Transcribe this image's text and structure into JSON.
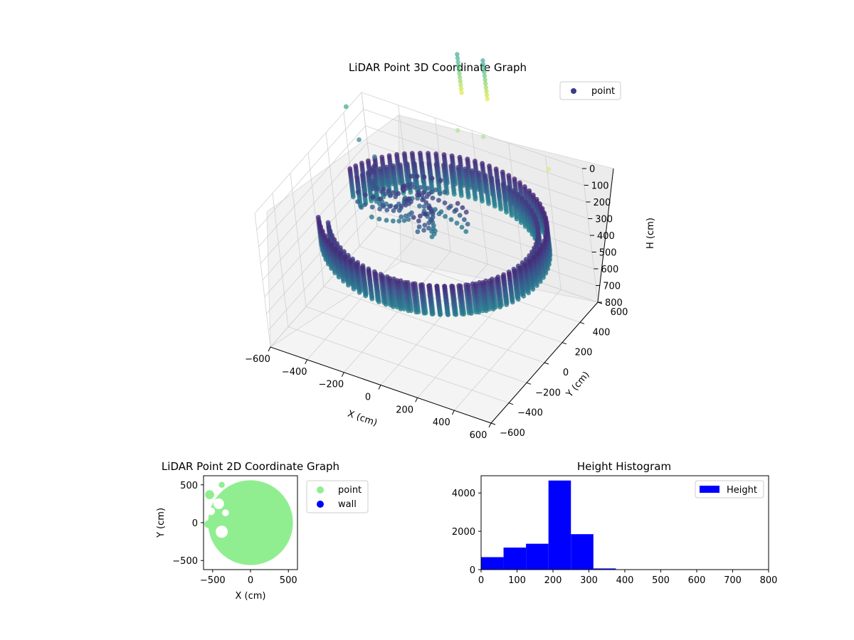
{
  "chart_data": [
    {
      "type": "scatter3d",
      "title": "LiDAR Point 3D Coordinate Graph",
      "xlabel": "X (cm)",
      "ylabel": "Y (cm)",
      "zlabel": "H (cm)",
      "xlim": [
        -600,
        600
      ],
      "ylim": [
        -600,
        600
      ],
      "zlim": [
        0,
        800
      ],
      "z_inverted": true,
      "x_ticks": [
        "−600",
        "−400",
        "−200",
        "0",
        "200",
        "400",
        "600"
      ],
      "y_ticks": [
        "−600",
        "−400",
        "−200",
        "0",
        "200",
        "400",
        "600"
      ],
      "z_ticks": [
        "0",
        "100",
        "200",
        "300",
        "400",
        "500",
        "600",
        "700",
        "800"
      ],
      "legend": {
        "position": "top-right",
        "entries": [
          {
            "name": "point",
            "color": "#3b3a8a"
          }
        ]
      },
      "colormap": "viridis",
      "grid": true,
      "wall": {
        "radius": 560,
        "center": [
          60,
          0
        ],
        "arc_start_deg": -150,
        "arc_end_deg": 165,
        "h_top": 150,
        "h_bottom": 320
      },
      "outliers": [
        {
          "x": -640,
          "y": 500,
          "h": 40,
          "color": "#4fb09a"
        },
        {
          "x": -520,
          "y": 380,
          "h": 120,
          "color": "#4a8fa2"
        },
        {
          "x": -420,
          "y": 340,
          "h": 160,
          "color": "#3f7796"
        },
        {
          "x": -80,
          "y": 600,
          "h": 30,
          "color": "#b9e4a8"
        },
        {
          "x": 50,
          "y": 620,
          "h": 30,
          "color": "#b9e4a8"
        },
        {
          "x": 420,
          "y": 580,
          "h": 60,
          "color": "#ddea8a"
        }
      ]
    },
    {
      "type": "scatter",
      "title": "LiDAR Point 2D Coordinate Graph",
      "xlabel": "X (cm)",
      "ylabel": "Y (cm)",
      "xlim": [
        -620,
        620
      ],
      "ylim": [
        -620,
        620
      ],
      "x_ticks": [
        "−500",
        "0",
        "500"
      ],
      "y_ticks": [
        "−500",
        "0",
        "500"
      ],
      "legend": {
        "position": "outside-right",
        "entries": [
          {
            "name": "point",
            "color": "#90ee90"
          },
          {
            "name": "wall",
            "color": "#0000ff"
          }
        ]
      },
      "region": {
        "center": [
          0,
          0
        ],
        "radius": 560,
        "color": "#90ee90"
      }
    },
    {
      "type": "bar",
      "title": "Height Histogram",
      "xlabel": "",
      "ylabel": "",
      "xlim": [
        0,
        800
      ],
      "ylim": [
        0,
        4900
      ],
      "x_ticks": [
        "0",
        "100",
        "200",
        "300",
        "400",
        "500",
        "600",
        "700",
        "800"
      ],
      "y_ticks": [
        "0",
        "2000",
        "4000"
      ],
      "bin_edges": [
        0,
        62.5,
        125,
        187.5,
        250,
        312.5,
        375,
        437.5,
        500,
        562.5,
        625,
        687.5,
        750,
        812.5
      ],
      "values": [
        650,
        1150,
        1350,
        4650,
        1850,
        60,
        10,
        5,
        5,
        5,
        5,
        5,
        5
      ],
      "legend": {
        "position": "top-right",
        "entries": [
          {
            "name": "Height",
            "color": "#0000ff"
          }
        ]
      },
      "color": "#0000ff"
    }
  ]
}
